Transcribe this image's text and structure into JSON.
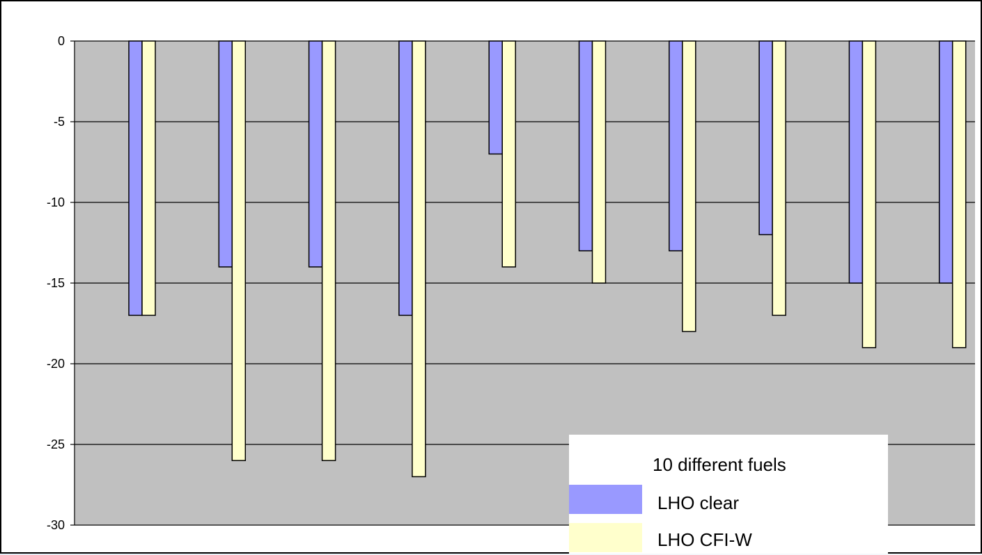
{
  "chart_data": {
    "type": "bar",
    "title": "",
    "xlabel": "",
    "ylabel": "",
    "ylim": [
      -30,
      0
    ],
    "yticks": [
      0,
      -5,
      -10,
      -15,
      -20,
      -25,
      -30
    ],
    "ytick_labels": [
      "0",
      "-5",
      "-10",
      "-15",
      "-20",
      "-25",
      "-30"
    ],
    "grid": true,
    "plot_background": "#c0c0c0",
    "legend": {
      "placement": "bottom-right",
      "title": "10 different fuels"
    },
    "categories_count": 10,
    "series": [
      {
        "name": "LHO clear",
        "color": "#9999ff",
        "values": [
          -17,
          -14,
          -14,
          -17,
          -7,
          -13,
          -13,
          -12,
          -15,
          -15
        ]
      },
      {
        "name": "LHO CFI-W",
        "color": "#ffffcc",
        "values": [
          -17,
          -26,
          -26,
          -27,
          -14,
          -15,
          -18,
          -17,
          -19,
          -19
        ]
      }
    ]
  }
}
